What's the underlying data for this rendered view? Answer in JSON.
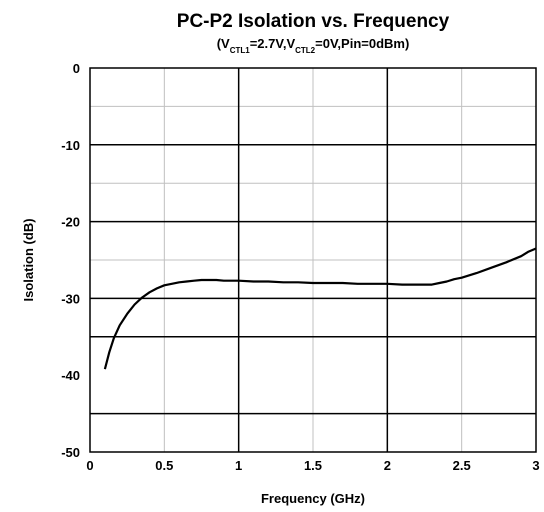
{
  "chart_data": {
    "type": "line",
    "title": "PC-P2 Isolation vs. Frequency",
    "subtitle": {
      "open": "(V",
      "sub1": "CTL1",
      "mid": "=2.7V,V",
      "sub2": "CTL2",
      "tail": "=0V,Pin=0dBm)"
    },
    "xlabel": "Frequency (GHz)",
    "ylabel": "Isolation (dB)",
    "xlim": [
      0,
      3
    ],
    "ylim": [
      -50,
      0
    ],
    "x_ticks": [
      0,
      0.5,
      1,
      1.5,
      2,
      2.5,
      3
    ],
    "x_tick_labels": [
      "0",
      "0.5",
      "1",
      "1.5",
      "2",
      "2.5",
      "3"
    ],
    "y_ticks": [
      0,
      -10,
      -20,
      -30,
      -40,
      -50
    ],
    "y_tick_labels": [
      "0",
      "-10",
      "-20",
      "-30",
      "-40",
      "-50"
    ],
    "grid": {
      "major_x": [
        1,
        2
      ],
      "major_y": [
        -10,
        -20,
        -30,
        -35,
        -45
      ],
      "minor_x": [
        0.5,
        1.5,
        2.5
      ],
      "minor_y": [
        -5,
        -15,
        -25
      ]
    },
    "series": [
      {
        "color": "#000000",
        "x": [
          0.1,
          0.13,
          0.16,
          0.2,
          0.25,
          0.3,
          0.35,
          0.4,
          0.45,
          0.5,
          0.55,
          0.6,
          0.65,
          0.7,
          0.75,
          0.8,
          0.85,
          0.9,
          1.0,
          1.1,
          1.2,
          1.3,
          1.4,
          1.5,
          1.6,
          1.7,
          1.8,
          1.9,
          2.0,
          2.1,
          2.2,
          2.25,
          2.3,
          2.35,
          2.4,
          2.45,
          2.5,
          2.6,
          2.7,
          2.8,
          2.9,
          2.95,
          3.0
        ],
        "y": [
          -39.2,
          -37.0,
          -35.2,
          -33.5,
          -32.0,
          -30.8,
          -29.9,
          -29.2,
          -28.7,
          -28.3,
          -28.1,
          -27.9,
          -27.8,
          -27.7,
          -27.6,
          -27.6,
          -27.6,
          -27.7,
          -27.7,
          -27.8,
          -27.8,
          -27.9,
          -27.9,
          -28.0,
          -28.0,
          -28.0,
          -28.1,
          -28.1,
          -28.1,
          -28.2,
          -28.2,
          -28.2,
          -28.2,
          -28.0,
          -27.8,
          -27.5,
          -27.3,
          -26.7,
          -26.0,
          -25.3,
          -24.5,
          -23.9,
          -23.5
        ]
      }
    ]
  }
}
